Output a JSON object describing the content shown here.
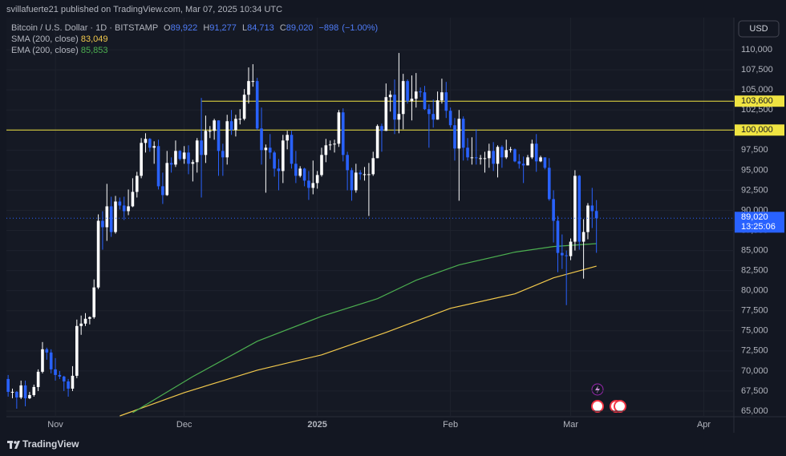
{
  "header": "svillafuerte21 published on TradingView.com, Mar 07, 2025 10:34 UTC",
  "footer": {
    "brand": "TradingView"
  },
  "chart_data": {
    "type": "candlestick",
    "symbol": "Bitcoin / U.S. Dollar · 1D · BITSTAMP",
    "currency": "USD",
    "quote": {
      "labels": [
        "O",
        "H",
        "L",
        "C"
      ],
      "values": [
        89922,
        91277,
        84713,
        89020
      ],
      "value_labels": [
        "89,922",
        "91,277",
        "84,713",
        "89,020"
      ],
      "change": -898,
      "change_label": "−898",
      "change_percent": -1.0,
      "change_percent_label": "(−1.00%)"
    },
    "up_color": "#ffffff",
    "down_color": "#2962ff",
    "open": [
      69000,
      67400,
      67400,
      66700,
      68200,
      66600,
      67000,
      68000,
      69900,
      72700,
      72300,
      70200,
      69500,
      69300,
      68700,
      67800,
      69400,
      75600,
      75900,
      76500,
      76700,
      80400,
      88700,
      87900,
      90500,
      87300,
      91100,
      90600,
      89900,
      90500,
      92300,
      94300,
      98400,
      98900,
      97800,
      98000,
      93000,
      91900,
      95900,
      95700,
      97400,
      96400,
      97200,
      95800,
      96000,
      98700,
      96900,
      99900,
      99900,
      101200,
      97400,
      96600,
      101100,
      100000,
      101400,
      101400,
      104400,
      106100,
      106100,
      100200,
      97500,
      97800,
      97200,
      95200,
      94900,
      98700,
      99400,
      95800,
      94300,
      95200,
      93700,
      92800,
      93400,
      94400,
      96900,
      98100,
      98200,
      98300,
      102200,
      96900,
      95000,
      92500,
      94700,
      94500,
      94500,
      94500,
      96500,
      100500,
      99900,
      104100,
      104400,
      101300,
      102000,
      106100,
      103600,
      103900,
      104800,
      104700,
      102600,
      102000,
      101300,
      103700,
      104700,
      102400,
      100600,
      97700,
      101400,
      97800,
      96600,
      96600,
      96500,
      96500,
      96500,
      97400,
      95800,
      97900,
      96600,
      97500,
      97600,
      96100,
      95800,
      95600,
      96600,
      98300,
      96100,
      96600,
      95300,
      91400,
      88700,
      84700,
      84400,
      84300,
      86100,
      94300,
      86100,
      87300,
      90600,
      89922
    ],
    "high": [
      69500,
      67800,
      67500,
      68800,
      68800,
      67400,
      68300,
      70200,
      73600,
      72900,
      72700,
      71600,
      70000,
      69400,
      69000,
      70600,
      76400,
      76900,
      77200,
      76800,
      81400,
      89500,
      89900,
      93300,
      91700,
      91800,
      91600,
      91700,
      92600,
      94000,
      94800,
      99000,
      99600,
      99000,
      98600,
      98800,
      94700,
      97400,
      96600,
      98700,
      97500,
      98000,
      98100,
      96300,
      99000,
      104000,
      101800,
      100500,
      101400,
      101200,
      98300,
      101900,
      102500,
      101900,
      102600,
      105100,
      107800,
      108200,
      106500,
      102800,
      98200,
      99500,
      97400,
      96400,
      99400,
      99900,
      99900,
      97400,
      95500,
      95300,
      94900,
      96200,
      94900,
      97800,
      98900,
      98700,
      98800,
      102500,
      102700,
      97300,
      95300,
      95800,
      95000,
      95400,
      95900,
      97300,
      100700,
      100800,
      105800,
      104900,
      106300,
      109600,
      107000,
      106300,
      106800,
      107100,
      105300,
      105500,
      103200,
      103800,
      104800,
      106400,
      106000,
      102800,
      101500,
      102500,
      101700,
      99000,
      99100,
      100100,
      96900,
      97300,
      98300,
      98500,
      98100,
      98100,
      98800,
      97900,
      97700,
      97000,
      96700,
      96900,
      98800,
      99500,
      96800,
      96600,
      96500,
      92500,
      89300,
      87000,
      85000,
      86500,
      95000,
      94400,
      88900,
      90900,
      92800,
      91277
    ],
    "low": [
      66800,
      66600,
      65300,
      66500,
      65600,
      66500,
      66800,
      67500,
      69700,
      71400,
      69700,
      68800,
      69000,
      67500,
      66800,
      67500,
      69100,
      74500,
      75600,
      75800,
      76500,
      80200,
      85100,
      86200,
      86700,
      87100,
      90100,
      88800,
      89400,
      90400,
      91600,
      94000,
      97200,
      97300,
      95800,
      92600,
      90800,
      91800,
      94700,
      95400,
      96200,
      95800,
      94500,
      93600,
      94700,
      91600,
      95900,
      99000,
      98800,
      94300,
      94300,
      95700,
      99400,
      99200,
      100700,
      101200,
      103300,
      105400,
      100000,
      95700,
      92200,
      96400,
      94200,
      92500,
      93400,
      97600,
      95200,
      93400,
      94100,
      93000,
      91300,
      92000,
      92700,
      94200,
      96000,
      97500,
      97200,
      97900,
      96100,
      92500,
      91200,
      92200,
      93800,
      93700,
      89300,
      94300,
      96500,
      97300,
      99900,
      102300,
      99500,
      99600,
      100100,
      103300,
      101200,
      102800,
      104100,
      102500,
      97800,
      100300,
      101300,
      103300,
      101500,
      100300,
      96200,
      91200,
      96200,
      96200,
      95700,
      95700,
      95700,
      94700,
      95300,
      94900,
      94100,
      95300,
      96400,
      97200,
      96000,
      95200,
      93400,
      95600,
      96400,
      94800,
      96000,
      95100,
      91200,
      86000,
      82300,
      82700,
      78200,
      83800,
      85000,
      85100,
      81500,
      86400,
      87800,
      84713
    ],
    "close": [
      67400,
      67400,
      66700,
      68200,
      66600,
      67000,
      68000,
      69900,
      72700,
      72300,
      70200,
      69500,
      69300,
      68700,
      67800,
      69400,
      75600,
      75900,
      76500,
      76700,
      80400,
      88700,
      87900,
      90500,
      87300,
      91100,
      90600,
      89900,
      90500,
      92300,
      94300,
      98400,
      98900,
      97800,
      98000,
      93000,
      91900,
      95900,
      95700,
      97400,
      96400,
      97200,
      95800,
      96000,
      98700,
      96900,
      99900,
      99900,
      101200,
      97400,
      96600,
      101100,
      100000,
      101400,
      101400,
      104400,
      106100,
      106100,
      100200,
      97500,
      97800,
      97200,
      95200,
      94900,
      98700,
      99400,
      95800,
      94300,
      95200,
      93700,
      92800,
      93400,
      94400,
      96900,
      98100,
      98200,
      98300,
      102200,
      96900,
      95000,
      92500,
      94700,
      94500,
      94500,
      94500,
      96500,
      100500,
      99900,
      104100,
      104400,
      101300,
      102000,
      106100,
      103600,
      103900,
      104800,
      104700,
      102600,
      102000,
      101300,
      103700,
      104700,
      102400,
      100600,
      97700,
      101400,
      97800,
      96600,
      96600,
      96500,
      96500,
      96500,
      97400,
      95800,
      97900,
      96600,
      97500,
      97600,
      96100,
      95800,
      95600,
      96600,
      98300,
      96100,
      96600,
      95300,
      91400,
      88700,
      84700,
      84400,
      84300,
      86100,
      94300,
      86100,
      87300,
      90600,
      89900,
      89020
    ],
    "indicators": [
      {
        "name": "SMA (200, close)",
        "color": "#f2c94c",
        "legend_value": 83049,
        "legend_value_label": "83,049",
        "x": [
          26,
          41,
          58,
          73,
          88,
          103,
          118,
          127,
          137
        ],
        "values": [
          64400,
          67300,
          70100,
          72000,
          74800,
          77800,
          79600,
          81600,
          83049
        ]
      },
      {
        "name": "EMA (200, close)",
        "color": "#4caf50",
        "legend_value": 85853,
        "legend_value_label": "85,853",
        "x": [
          29,
          43,
          58,
          73,
          86,
          95,
          105,
          118,
          127,
          137
        ],
        "values": [
          64800,
          69300,
          73700,
          76800,
          79000,
          81300,
          83200,
          84800,
          85500,
          85853
        ]
      }
    ],
    "levels": [
      {
        "value": 103600,
        "value_label": "103,600",
        "x": 45,
        "color": "#f0e442"
      },
      {
        "value": 100000,
        "value_label": "100,000",
        "color": "#f0e442"
      }
    ],
    "price_line": {
      "value": 89020,
      "label": "89,020",
      "countdown": "13:25:06",
      "color": "#2962ff"
    },
    "xlim": [
      -0.4,
      169
    ],
    "xticks": [
      {
        "value": 11,
        "label": "Nov"
      },
      {
        "value": 41,
        "label": "Dec"
      },
      {
        "value": 72,
        "label": "2025"
      },
      {
        "value": 103,
        "label": "Feb"
      },
      {
        "value": 131,
        "label": "Mar"
      },
      {
        "value": 162,
        "label": "Apr"
      }
    ],
    "ylim": [
      64300,
      114000
    ],
    "yticks": [
      {
        "value": 65000,
        "label": "65,000"
      },
      {
        "value": 67500,
        "label": "67,500"
      },
      {
        "value": 70000,
        "label": "70,000"
      },
      {
        "value": 72500,
        "label": "72,500"
      },
      {
        "value": 75000,
        "label": "75,000"
      },
      {
        "value": 77500,
        "label": "77,500"
      },
      {
        "value": 80000,
        "label": "80,000"
      },
      {
        "value": 82500,
        "label": "82,500"
      },
      {
        "value": 85000,
        "label": "85,000"
      },
      {
        "value": 87500,
        "label": "87,500"
      },
      {
        "value": 90000,
        "label": "90,000"
      },
      {
        "value": 92500,
        "label": "92,500"
      },
      {
        "value": 95000,
        "label": "95,000"
      },
      {
        "value": 97500,
        "label": "97,500"
      },
      {
        "value": 100000,
        "label": "100,000"
      },
      {
        "value": 102500,
        "label": "102,500"
      },
      {
        "value": 105000,
        "label": "105,000"
      },
      {
        "value": 107500,
        "label": "107,500"
      },
      {
        "value": 110000,
        "label": "110,000"
      }
    ],
    "grid": true
  }
}
